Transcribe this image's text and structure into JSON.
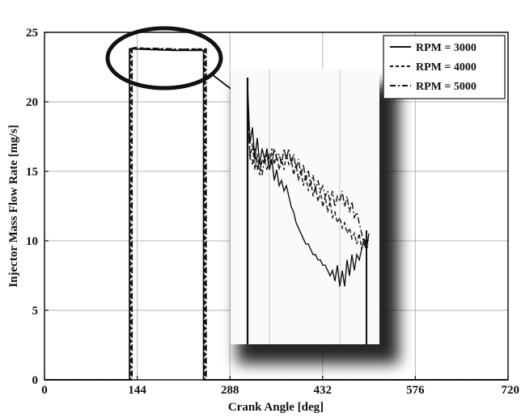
{
  "chart_data": {
    "type": "line",
    "xlabel": "Crank Angle [deg]",
    "ylabel": "Injector Mass Flow Rate [mg/s]",
    "xlim": [
      0,
      720
    ],
    "ylim": [
      0,
      25
    ],
    "grid": true,
    "legend_placement": "top-right",
    "x_ticks": [
      "0",
      "144",
      "288",
      "432",
      "576",
      "720"
    ],
    "y_ticks": [
      "0",
      "5",
      "10",
      "15",
      "20",
      "25"
    ],
    "series": [
      {
        "name": "RPM = 3000",
        "style": "solid",
        "x": [
          0,
          132,
          132,
          140,
          170,
          200,
          230,
          247,
          247,
          720
        ],
        "y": [
          0,
          0,
          23.8,
          23.8,
          23.75,
          23.7,
          23.7,
          23.7,
          0,
          0
        ]
      },
      {
        "name": "RPM = 4000",
        "style": "dashed",
        "x": [
          0,
          134,
          134,
          140,
          170,
          200,
          230,
          249,
          249,
          720
        ],
        "y": [
          0,
          0,
          23.85,
          23.9,
          23.8,
          23.75,
          23.8,
          23.8,
          0,
          0
        ]
      },
      {
        "name": "RPM = 5000",
        "style": "dash-dot",
        "x": [
          0,
          136,
          136,
          140,
          170,
          200,
          230,
          251,
          251,
          720
        ],
        "y": [
          0,
          0,
          23.85,
          23.8,
          23.85,
          23.8,
          23.75,
          23.8,
          0,
          0
        ]
      }
    ]
  },
  "inset_data": {
    "y_range": [
      23.5,
      24.0
    ],
    "series": [
      {
        "name": "RPM = 3000",
        "style": "solid",
        "x": [
          0,
          0.02,
          0.04,
          0.06,
          0.08,
          0.1,
          0.12,
          0.14,
          0.16,
          0.18,
          0.2,
          0.22,
          0.24,
          0.26,
          0.28,
          0.3,
          0.32,
          0.34,
          0.36,
          0.38,
          0.4,
          0.42,
          0.44,
          0.46,
          0.48,
          0.5,
          0.52,
          0.54,
          0.56,
          0.58,
          0.6,
          0.62,
          0.64,
          0.66,
          0.68,
          0.7,
          0.72,
          0.74,
          0.76,
          0.78,
          0.8,
          0.82,
          0.84,
          0.86,
          0.88,
          0.9,
          0.92,
          0.94,
          0.96,
          0.98,
          1.0
        ],
        "y": [
          23.98,
          23.87,
          23.9,
          23.84,
          23.88,
          23.83,
          23.86,
          23.84,
          23.86,
          23.82,
          23.84,
          23.8,
          23.82,
          23.79,
          23.8,
          23.78,
          23.79,
          23.77,
          23.75,
          23.74,
          23.72,
          23.71,
          23.7,
          23.69,
          23.68,
          23.68,
          23.67,
          23.66,
          23.66,
          23.65,
          23.65,
          23.64,
          23.64,
          23.63,
          23.62,
          23.63,
          23.61,
          23.64,
          23.6,
          23.63,
          23.6,
          23.65,
          23.62,
          23.66,
          23.63,
          23.66,
          23.65,
          23.67,
          23.69,
          23.67,
          23.7
        ]
      },
      {
        "name": "RPM = 4000",
        "style": "dashed",
        "x": [
          0,
          0.02,
          0.04,
          0.06,
          0.08,
          0.1,
          0.12,
          0.14,
          0.16,
          0.18,
          0.2,
          0.22,
          0.24,
          0.26,
          0.28,
          0.3,
          0.32,
          0.34,
          0.36,
          0.38,
          0.4,
          0.42,
          0.44,
          0.46,
          0.48,
          0.5,
          0.52,
          0.54,
          0.56,
          0.58,
          0.6,
          0.62,
          0.64,
          0.66,
          0.68,
          0.7,
          0.72,
          0.74,
          0.76,
          0.78,
          0.8,
          0.82,
          0.84,
          0.86,
          0.88,
          0.9,
          0.92,
          0.94,
          0.96,
          0.98,
          1.0
        ],
        "y": [
          23.95,
          23.84,
          23.87,
          23.82,
          23.85,
          23.81,
          23.84,
          23.83,
          23.85,
          23.82,
          23.86,
          23.83,
          23.85,
          23.82,
          23.84,
          23.82,
          23.85,
          23.83,
          23.84,
          23.81,
          23.83,
          23.8,
          23.82,
          23.79,
          23.81,
          23.78,
          23.8,
          23.77,
          23.79,
          23.76,
          23.78,
          23.75,
          23.77,
          23.74,
          23.76,
          23.73,
          23.74,
          23.72,
          23.73,
          23.71,
          23.72,
          23.7,
          23.71,
          23.69,
          23.7,
          23.68,
          23.7,
          23.67,
          23.69,
          23.68,
          23.69
        ]
      },
      {
        "name": "RPM = 5000",
        "style": "dash-dot",
        "x": [
          0,
          0.02,
          0.04,
          0.06,
          0.08,
          0.1,
          0.12,
          0.14,
          0.16,
          0.18,
          0.2,
          0.22,
          0.24,
          0.26,
          0.28,
          0.3,
          0.32,
          0.34,
          0.36,
          0.38,
          0.4,
          0.42,
          0.44,
          0.46,
          0.48,
          0.5,
          0.52,
          0.54,
          0.56,
          0.58,
          0.6,
          0.62,
          0.64,
          0.66,
          0.68,
          0.7,
          0.72,
          0.74,
          0.76,
          0.78,
          0.8,
          0.82,
          0.84,
          0.86,
          0.88,
          0.9,
          0.92,
          0.94,
          0.96,
          0.98,
          1.0
        ],
        "y": [
          23.93,
          23.85,
          23.83,
          23.86,
          23.82,
          23.84,
          23.81,
          23.84,
          23.82,
          23.85,
          23.83,
          23.86,
          23.84,
          23.85,
          23.83,
          23.86,
          23.84,
          23.86,
          23.83,
          23.85,
          23.82,
          23.84,
          23.81,
          23.83,
          23.8,
          23.82,
          23.79,
          23.81,
          23.78,
          23.8,
          23.78,
          23.79,
          23.77,
          23.78,
          23.76,
          23.78,
          23.75,
          23.77,
          23.76,
          23.78,
          23.75,
          23.77,
          23.74,
          23.76,
          23.73,
          23.74,
          23.72,
          23.7,
          23.68,
          23.67,
          23.68
        ]
      }
    ]
  },
  "colors": {
    "line": "#111111",
    "grid": "#b5b5b5",
    "background": "#ffffff",
    "inset_shadow": "#000000"
  }
}
